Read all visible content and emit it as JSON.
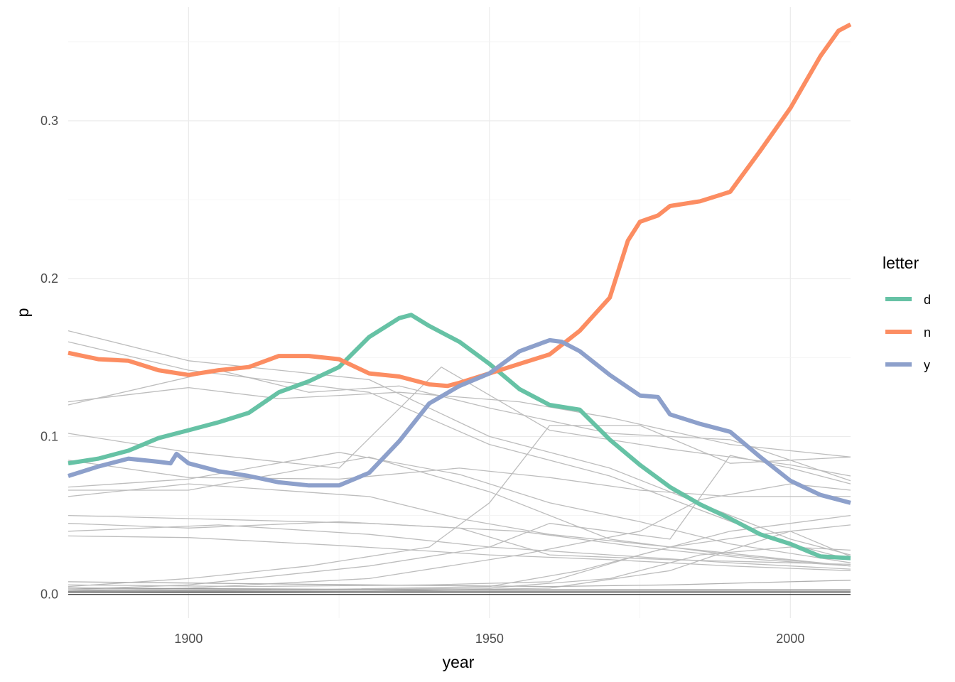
{
  "chart_data": {
    "type": "line",
    "xlabel": "year",
    "ylabel": "p",
    "xlim": [
      1880,
      2010
    ],
    "ylim": [
      -0.015,
      0.372
    ],
    "x_ticks": [
      1900,
      1950,
      2000
    ],
    "y_ticks": [
      0.0,
      0.1,
      0.2,
      0.3
    ],
    "x_tick_labels": [
      "1900",
      "1950",
      "2000"
    ],
    "y_tick_labels": [
      "0.0",
      "0.1",
      "0.2",
      "0.3"
    ],
    "grid": true,
    "legend": {
      "title": "letter",
      "position": "right"
    },
    "series": [
      {
        "name": "d",
        "color": "#66c2a5",
        "highlight": true,
        "x": [
          1880,
          1885,
          1890,
          1895,
          1900,
          1905,
          1910,
          1915,
          1920,
          1925,
          1930,
          1935,
          1937,
          1940,
          1945,
          1950,
          1955,
          1960,
          1965,
          1970,
          1975,
          1980,
          1985,
          1990,
          1995,
          2000,
          2005,
          2010
        ],
        "y": [
          0.083,
          0.086,
          0.091,
          0.099,
          0.104,
          0.109,
          0.115,
          0.128,
          0.135,
          0.144,
          0.163,
          0.175,
          0.177,
          0.17,
          0.16,
          0.146,
          0.13,
          0.12,
          0.117,
          0.098,
          0.082,
          0.068,
          0.057,
          0.048,
          0.038,
          0.032,
          0.024,
          0.023
        ]
      },
      {
        "name": "n",
        "color": "#fc8d62",
        "highlight": true,
        "x": [
          1880,
          1885,
          1890,
          1895,
          1900,
          1905,
          1910,
          1915,
          1920,
          1925,
          1930,
          1935,
          1940,
          1943,
          1945,
          1950,
          1955,
          1960,
          1965,
          1970,
          1973,
          1975,
          1978,
          1980,
          1985,
          1990,
          1995,
          2000,
          2005,
          2008,
          2010
        ],
        "y": [
          0.153,
          0.149,
          0.148,
          0.142,
          0.139,
          0.142,
          0.144,
          0.151,
          0.151,
          0.149,
          0.14,
          0.138,
          0.133,
          0.132,
          0.134,
          0.14,
          0.146,
          0.152,
          0.167,
          0.188,
          0.224,
          0.236,
          0.24,
          0.246,
          0.249,
          0.255,
          0.281,
          0.308,
          0.341,
          0.357,
          0.361
        ]
      },
      {
        "name": "y",
        "color": "#8da0cb",
        "highlight": true,
        "x": [
          1880,
          1885,
          1890,
          1895,
          1897,
          1898,
          1900,
          1905,
          1910,
          1915,
          1920,
          1925,
          1930,
          1935,
          1940,
          1945,
          1950,
          1955,
          1960,
          1962,
          1965,
          1970,
          1975,
          1978,
          1980,
          1985,
          1990,
          1995,
          2000,
          2005,
          2010
        ],
        "y": [
          0.075,
          0.081,
          0.086,
          0.084,
          0.083,
          0.089,
          0.083,
          0.078,
          0.075,
          0.071,
          0.069,
          0.069,
          0.077,
          0.097,
          0.121,
          0.132,
          0.14,
          0.154,
          0.161,
          0.16,
          0.154,
          0.139,
          0.126,
          0.125,
          0.114,
          0.108,
          0.103,
          0.087,
          0.072,
          0.063,
          0.058
        ]
      },
      {
        "name": "",
        "color": "#bdbdbd",
        "highlight": false,
        "x": [
          1880,
          1900,
          1930,
          1950,
          1970,
          2000,
          2010
        ],
        "y": [
          0.167,
          0.148,
          0.136,
          0.1,
          0.08,
          0.035,
          0.025
        ]
      },
      {
        "name": "",
        "color": "#bdbdbd",
        "highlight": false,
        "x": [
          1880,
          1900,
          1930,
          1950,
          1970,
          2000,
          2010
        ],
        "y": [
          0.16,
          0.142,
          0.128,
          0.095,
          0.075,
          0.032,
          0.022
        ]
      },
      {
        "name": "",
        "color": "#bdbdbd",
        "highlight": false,
        "x": [
          1880,
          1900,
          1915,
          1935,
          1955,
          1970,
          1990,
          2010
        ],
        "y": [
          0.122,
          0.131,
          0.124,
          0.128,
          0.122,
          0.112,
          0.095,
          0.087
        ]
      },
      {
        "name": "",
        "color": "#bdbdbd",
        "highlight": false,
        "x": [
          1880,
          1905,
          1920,
          1935,
          1950,
          1970,
          1990,
          2010
        ],
        "y": [
          0.12,
          0.142,
          0.128,
          0.132,
          0.118,
          0.102,
          0.098,
          0.072
        ]
      },
      {
        "name": "",
        "color": "#bdbdbd",
        "highlight": false,
        "x": [
          1880,
          1900,
          1925,
          1942,
          1960,
          1980,
          2000,
          2010
        ],
        "y": [
          0.102,
          0.09,
          0.08,
          0.144,
          0.104,
          0.092,
          0.082,
          0.075
        ]
      },
      {
        "name": "",
        "color": "#bdbdbd",
        "highlight": false,
        "x": [
          1880,
          1900,
          1925,
          1945,
          1960,
          1975,
          1990,
          2010
        ],
        "y": [
          0.085,
          0.074,
          0.073,
          0.08,
          0.074,
          0.066,
          0.062,
          0.062
        ]
      },
      {
        "name": "",
        "color": "#bdbdbd",
        "highlight": false,
        "x": [
          1880,
          1900,
          1925,
          1945,
          1960,
          1975,
          1990,
          2010
        ],
        "y": [
          0.068,
          0.073,
          0.09,
          0.076,
          0.058,
          0.046,
          0.032,
          0.02
        ]
      },
      {
        "name": "",
        "color": "#bdbdbd",
        "highlight": false,
        "x": [
          1880,
          1900,
          1930,
          1950,
          1970,
          1990,
          2010
        ],
        "y": [
          0.066,
          0.066,
          0.087,
          0.065,
          0.035,
          0.025,
          0.018
        ]
      },
      {
        "name": "",
        "color": "#bdbdbd",
        "highlight": false,
        "x": [
          1880,
          1900,
          1930,
          1945,
          1960,
          1980,
          2000,
          2010
        ],
        "y": [
          0.062,
          0.07,
          0.062,
          0.048,
          0.038,
          0.03,
          0.022,
          0.018
        ]
      },
      {
        "name": "",
        "color": "#bdbdbd",
        "highlight": false,
        "x": [
          1880,
          1900,
          1930,
          1955,
          1975,
          1995,
          2010
        ],
        "y": [
          0.05,
          0.048,
          0.045,
          0.04,
          0.03,
          0.022,
          0.018
        ]
      },
      {
        "name": "",
        "color": "#bdbdbd",
        "highlight": false,
        "x": [
          1880,
          1900,
          1925,
          1945,
          1960,
          1980,
          2000,
          2010
        ],
        "y": [
          0.045,
          0.042,
          0.046,
          0.042,
          0.025,
          0.022,
          0.02,
          0.019
        ]
      },
      {
        "name": "",
        "color": "#bdbdbd",
        "highlight": false,
        "x": [
          1880,
          1905,
          1930,
          1950,
          1970,
          1990,
          2010
        ],
        "y": [
          0.04,
          0.044,
          0.038,
          0.03,
          0.025,
          0.02,
          0.016
        ]
      },
      {
        "name": "",
        "color": "#bdbdbd",
        "highlight": false,
        "x": [
          1880,
          1900,
          1925,
          1950,
          1970,
          1990,
          2010
        ],
        "y": [
          0.037,
          0.036,
          0.031,
          0.025,
          0.022,
          0.018,
          0.015
        ]
      },
      {
        "name": "",
        "color": "#bdbdbd",
        "highlight": false,
        "x": [
          1880,
          1900,
          1920,
          1940,
          1950,
          1960,
          1975,
          1990,
          2010
        ],
        "y": [
          0.005,
          0.01,
          0.018,
          0.03,
          0.058,
          0.107,
          0.107,
          0.083,
          0.087
        ]
      },
      {
        "name": "",
        "color": "#bdbdbd",
        "highlight": false,
        "x": [
          1880,
          1900,
          1930,
          1950,
          1960,
          1980,
          1990,
          2000,
          2010
        ],
        "y": [
          0.003,
          0.006,
          0.018,
          0.03,
          0.045,
          0.035,
          0.088,
          0.08,
          0.07
        ]
      },
      {
        "name": "",
        "color": "#bdbdbd",
        "highlight": false,
        "x": [
          1880,
          1900,
          1930,
          1955,
          1975,
          1985,
          2000,
          2010
        ],
        "y": [
          0.002,
          0.004,
          0.01,
          0.025,
          0.04,
          0.06,
          0.07,
          0.066
        ]
      },
      {
        "name": "",
        "color": "#bdbdbd",
        "highlight": false,
        "x": [
          1880,
          1910,
          1940,
          1960,
          1975,
          1990,
          2000,
          2010
        ],
        "y": [
          0.006,
          0.005,
          0.006,
          0.008,
          0.025,
          0.04,
          0.045,
          0.05
        ]
      },
      {
        "name": "",
        "color": "#bdbdbd",
        "highlight": false,
        "x": [
          1880,
          1920,
          1950,
          1965,
          1980,
          1995,
          2010
        ],
        "y": [
          0.002,
          0.003,
          0.005,
          0.015,
          0.03,
          0.038,
          0.044
        ]
      },
      {
        "name": "",
        "color": "#bdbdbd",
        "highlight": false,
        "x": [
          1880,
          1920,
          1950,
          1970,
          1985,
          2000,
          2010
        ],
        "y": [
          0.003,
          0.003,
          0.004,
          0.01,
          0.025,
          0.03,
          0.028
        ]
      },
      {
        "name": "",
        "color": "#bdbdbd",
        "highlight": false,
        "x": [
          1880,
          1930,
          1960,
          1980,
          1990,
          2000,
          2010
        ],
        "y": [
          0.001,
          0.002,
          0.004,
          0.015,
          0.028,
          0.04,
          0.024
        ]
      },
      {
        "name": "",
        "color": "#b0b0b0",
        "highlight": false,
        "x": [
          1880,
          1930,
          1960,
          1980,
          2000,
          2010
        ],
        "y": [
          0.008,
          0.006,
          0.005,
          0.006,
          0.008,
          0.009
        ]
      },
      {
        "name": "",
        "color": "#999999",
        "highlight": false,
        "x": [
          1880,
          1940,
          1980,
          2010
        ],
        "y": [
          0.004,
          0.003,
          0.003,
          0.003
        ]
      },
      {
        "name": "",
        "color": "#808080",
        "highlight": false,
        "x": [
          1880,
          1940,
          1980,
          2010
        ],
        "y": [
          0.002,
          0.002,
          0.002,
          0.002
        ]
      },
      {
        "name": "",
        "color": "#666666",
        "highlight": false,
        "x": [
          1880,
          1940,
          1980,
          2010
        ],
        "y": [
          0.001,
          0.001,
          0.001,
          0.001
        ]
      },
      {
        "name": "",
        "color": "#444444",
        "highlight": false,
        "x": [
          1880,
          1940,
          1980,
          2010
        ],
        "y": [
          0.0,
          0.0,
          0.0,
          0.0
        ]
      }
    ]
  }
}
